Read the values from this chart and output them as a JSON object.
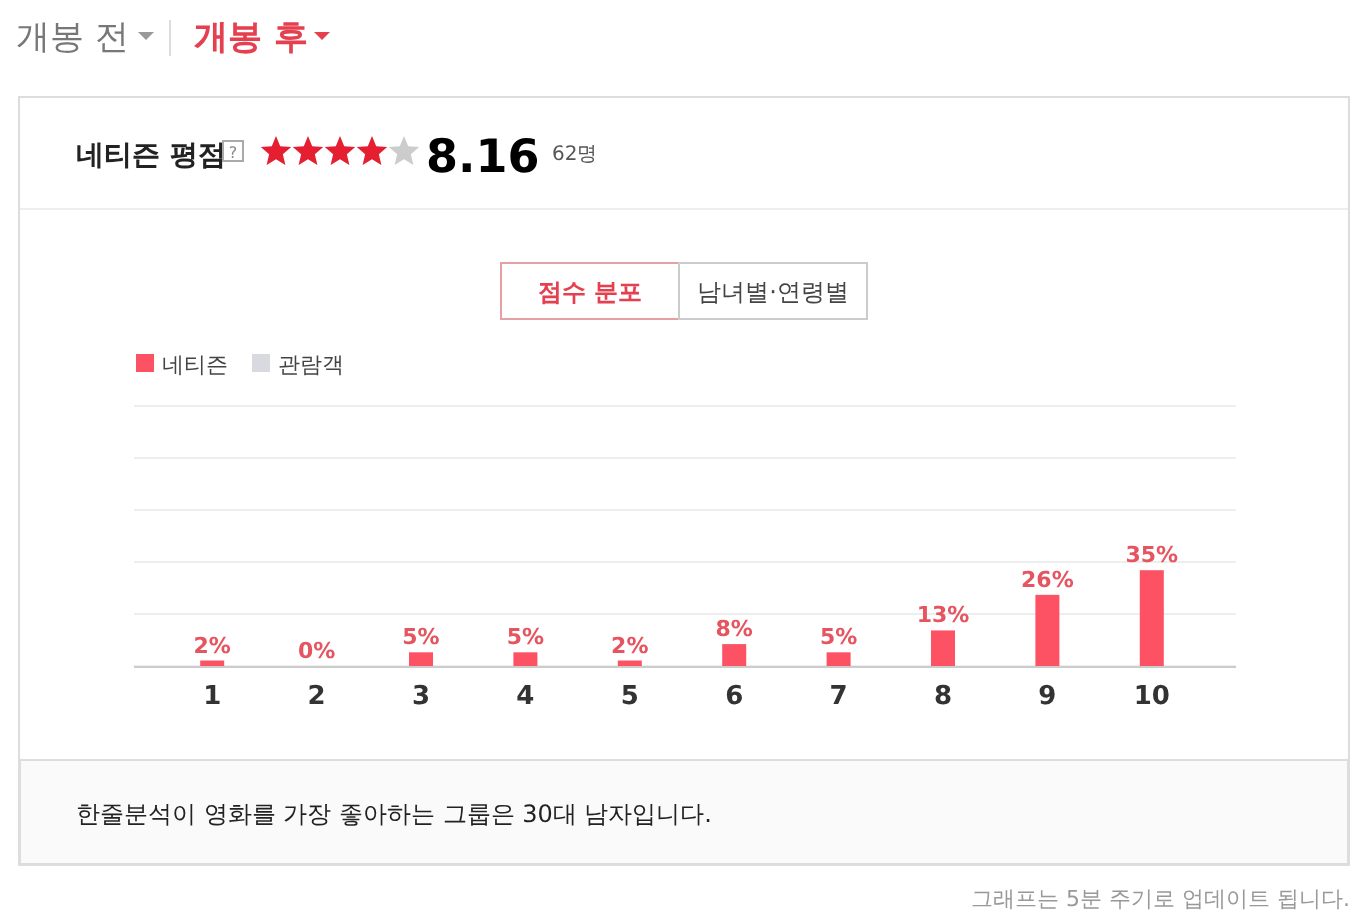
{
  "chart_data": {
    "type": "bar",
    "title": "네티즌 평점",
    "categories": [
      "1",
      "2",
      "3",
      "4",
      "5",
      "6",
      "7",
      "8",
      "9",
      "10"
    ],
    "series": [
      {
        "name": "네티즌",
        "color": "#fd5164",
        "values": [
          2,
          0,
          5,
          5,
          2,
          8,
          5,
          13,
          26,
          35
        ],
        "value_labels": [
          "2%",
          "0%",
          "5%",
          "5%",
          "2%",
          "8%",
          "5%",
          "13%",
          "26%",
          "35%"
        ]
      },
      {
        "name": "관람객",
        "color": "#d9d9e0",
        "values": [
          null,
          null,
          null,
          null,
          null,
          null,
          null,
          null,
          null,
          null
        ]
      }
    ],
    "ylim": [
      0,
      95
    ],
    "yticks": [
      {
        "value": 0,
        "label": null
      },
      {
        "value": 19,
        "label": null
      },
      {
        "value": 38,
        "label": null
      },
      {
        "value": 57,
        "label": null
      },
      {
        "value": 76,
        "label": null
      },
      {
        "value": 95,
        "label": null
      }
    ],
    "tick_labels": "x",
    "grid": "y",
    "legend": "top left",
    "annotations": [
      "개봉 전",
      "개봉 후",
      "8.16",
      "62명",
      "점수 분포",
      "남녀별·연령별",
      "한줄분석이 영화를 가장 좋아하는 그룹은 30대 남자입니다.",
      "그래프는 5분 주기로 업데이트 됩니다.",
      "?"
    ]
  }
}
